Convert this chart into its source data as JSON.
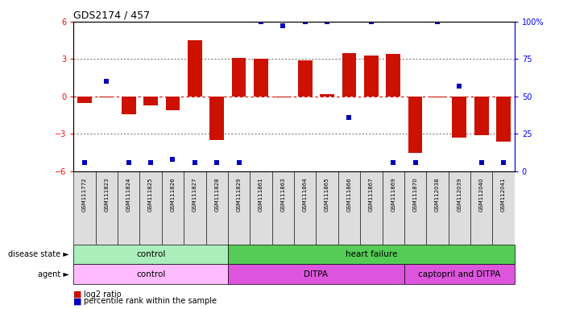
{
  "title": "GDS2174 / 457",
  "samples": [
    "GSM111772",
    "GSM111823",
    "GSM111824",
    "GSM111825",
    "GSM111826",
    "GSM111827",
    "GSM111828",
    "GSM111829",
    "GSM111861",
    "GSM111863",
    "GSM111864",
    "GSM111865",
    "GSM111866",
    "GSM111867",
    "GSM111869",
    "GSM111870",
    "GSM112038",
    "GSM112039",
    "GSM112040",
    "GSM112041"
  ],
  "log2_ratio": [
    -0.5,
    -0.1,
    -1.4,
    -0.7,
    -1.1,
    4.5,
    -3.5,
    3.1,
    3.05,
    -0.1,
    2.9,
    0.2,
    3.5,
    3.3,
    3.4,
    -4.5,
    -0.1,
    -3.3,
    -3.1,
    -3.6
  ],
  "percentile_rank": [
    6,
    60,
    6,
    6,
    8,
    6,
    6,
    6,
    100,
    97,
    100,
    100,
    36,
    100,
    6,
    6,
    100,
    57,
    6,
    6
  ],
  "ylim_left": [
    -6,
    6
  ],
  "ylim_right": [
    0,
    100
  ],
  "yticks_left": [
    -6,
    -3,
    0,
    3,
    6
  ],
  "yticks_right": [
    0,
    25,
    50,
    75,
    100
  ],
  "ytick_labels_right": [
    "0",
    "25",
    "50",
    "75",
    "100%"
  ],
  "bar_color": "#cc1100",
  "dot_color": "#0000bb",
  "zero_line_color": "#cc0000",
  "grid_line_color": "#333333",
  "disease_state_groups": [
    {
      "label": "control",
      "start": 0,
      "end": 7,
      "color": "#aaeebb"
    },
    {
      "label": "heart failure",
      "start": 7,
      "end": 20,
      "color": "#55cc55"
    }
  ],
  "agent_groups": [
    {
      "label": "control",
      "start": 0,
      "end": 7,
      "color": "#ffbbff"
    },
    {
      "label": "DITPA",
      "start": 7,
      "end": 15,
      "color": "#dd55dd"
    },
    {
      "label": "captopril and DITPA",
      "start": 15,
      "end": 20,
      "color": "#dd55dd"
    }
  ],
  "legend_items": [
    {
      "color": "#cc1100",
      "label": "log2 ratio"
    },
    {
      "color": "#0000bb",
      "label": "percentile rank within the sample"
    }
  ],
  "background_color": "#ffffff"
}
